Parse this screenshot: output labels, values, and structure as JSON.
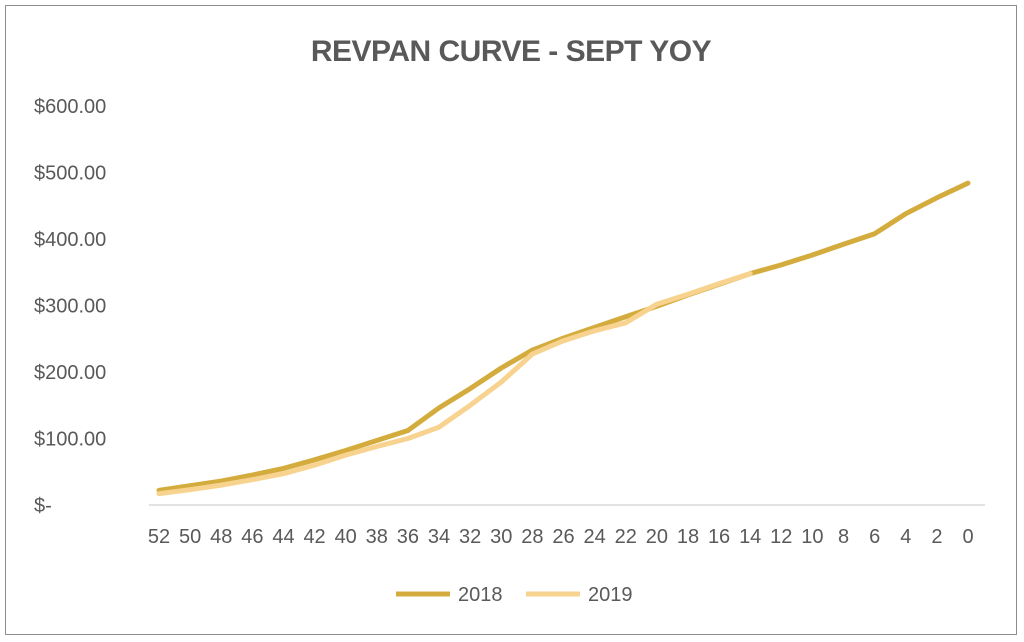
{
  "chart_data": {
    "type": "line",
    "title": "REVPAN CURVE - SEPT YOY",
    "xlabel": "",
    "ylabel": "",
    "x": [
      52,
      50,
      48,
      46,
      44,
      42,
      40,
      38,
      36,
      34,
      32,
      30,
      28,
      26,
      24,
      22,
      20,
      18,
      16,
      14,
      12,
      10,
      8,
      6,
      4,
      2,
      0
    ],
    "x_tick_labels": [
      "52",
      "50",
      "48",
      "46",
      "44",
      "42",
      "40",
      "38",
      "36",
      "34",
      "32",
      "30",
      "28",
      "26",
      "24",
      "22",
      "20",
      "18",
      "16",
      "14",
      "12",
      "10",
      "8",
      "6",
      "4",
      "2",
      "0"
    ],
    "y_tick_labels": [
      "$-",
      "$100.00",
      "$200.00",
      "$300.00",
      "$400.00",
      "$500.00",
      "$600.00"
    ],
    "ylim": [
      0,
      600
    ],
    "yticks": [
      0,
      100,
      200,
      300,
      400,
      500,
      600
    ],
    "grid": false,
    "legend_position": "bottom",
    "series": [
      {
        "name": "2018",
        "color": "#d4ac3d",
        "values": [
          22,
          29,
          36,
          45,
          55,
          68,
          82,
          97,
          112,
          146,
          175,
          206,
          233,
          251,
          267,
          283,
          299,
          316,
          332,
          348,
          361,
          376,
          392,
          408,
          438,
          462,
          484
        ]
      },
      {
        "name": "2019",
        "color": "#f7d38f",
        "values": [
          17,
          23,
          30,
          38,
          47,
          60,
          75,
          88,
          100,
          117,
          150,
          185,
          227,
          247,
          262,
          274,
          302,
          317,
          333,
          348,
          null,
          null,
          null,
          null,
          null,
          null,
          null
        ]
      }
    ]
  }
}
